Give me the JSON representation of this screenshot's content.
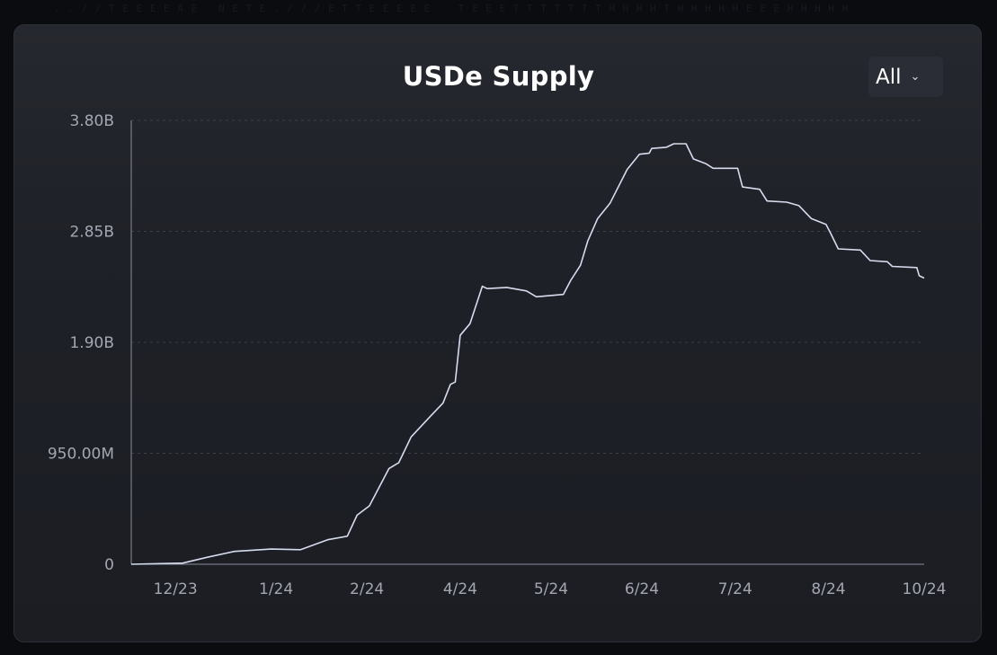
{
  "title": "USDe Supply",
  "range_selector": {
    "selected": "All",
    "icon": "chevron-down-icon"
  },
  "colors": {
    "line": "#d6dcee",
    "background": "#0a0c10",
    "card": "#1f2128",
    "grid": "#3a3e48"
  },
  "chart_data": {
    "type": "line",
    "title": "USDe Supply",
    "xlabel": "",
    "ylabel": "",
    "ylim": [
      0,
      3800000000
    ],
    "grid": "horizontal dashed",
    "yticks": [
      {
        "value": 0,
        "label": "0"
      },
      {
        "value": 950000000,
        "label": "950.00M"
      },
      {
        "value": 1900000000,
        "label": "1.90B"
      },
      {
        "value": 2850000000,
        "label": "2.85B"
      },
      {
        "value": 3800000000,
        "label": "3.80B"
      }
    ],
    "xticks": [
      {
        "date": "2023-12-08",
        "label": "12/23"
      },
      {
        "date": "2024-01-18",
        "label": "1/24"
      },
      {
        "date": "2024-02-24",
        "label": "2/24"
      },
      {
        "date": "2024-04-02",
        "label": "4/24"
      },
      {
        "date": "2024-05-09",
        "label": "5/24"
      },
      {
        "date": "2024-06-15",
        "label": "6/24"
      },
      {
        "date": "2024-07-23",
        "label": "7/24"
      },
      {
        "date": "2024-08-30",
        "label": "8/24"
      },
      {
        "date": "2024-10-08",
        "label": "10/24"
      }
    ],
    "series": [
      {
        "points": [
          [
            "2023-11-20",
            0
          ],
          [
            "2023-12-11",
            10000000
          ],
          [
            "2023-12-21",
            60000000
          ],
          [
            "2024-01-01",
            110000000
          ],
          [
            "2024-01-16",
            130000000
          ],
          [
            "2024-01-28",
            125000000
          ],
          [
            "2024-02-08",
            210000000
          ],
          [
            "2024-02-16",
            240000000
          ],
          [
            "2024-02-20",
            420000000
          ],
          [
            "2024-02-25",
            500000000
          ],
          [
            "2024-03-04",
            820000000
          ],
          [
            "2024-03-08",
            870000000
          ],
          [
            "2024-03-13",
            1090000000
          ],
          [
            "2024-03-21",
            1270000000
          ],
          [
            "2024-03-26",
            1380000000
          ],
          [
            "2024-03-29",
            1540000000
          ],
          [
            "2024-03-31",
            1560000000
          ],
          [
            "2024-04-02",
            1960000000
          ],
          [
            "2024-04-06",
            2060000000
          ],
          [
            "2024-04-11",
            2380000000
          ],
          [
            "2024-04-13",
            2360000000
          ],
          [
            "2024-04-21",
            2370000000
          ],
          [
            "2024-04-29",
            2340000000
          ],
          [
            "2024-05-03",
            2290000000
          ],
          [
            "2024-05-14",
            2310000000
          ],
          [
            "2024-05-17",
            2430000000
          ],
          [
            "2024-05-21",
            2560000000
          ],
          [
            "2024-05-24",
            2770000000
          ],
          [
            "2024-05-28",
            2960000000
          ],
          [
            "2024-06-02",
            3090000000
          ],
          [
            "2024-06-09",
            3380000000
          ],
          [
            "2024-06-14",
            3510000000
          ],
          [
            "2024-06-18",
            3520000000
          ],
          [
            "2024-06-19",
            3560000000
          ],
          [
            "2024-06-25",
            3570000000
          ],
          [
            "2024-06-28",
            3600000000
          ],
          [
            "2024-07-03",
            3600000000
          ],
          [
            "2024-07-06",
            3470000000
          ],
          [
            "2024-07-11",
            3430000000
          ],
          [
            "2024-07-14",
            3390000000
          ],
          [
            "2024-07-24",
            3390000000
          ],
          [
            "2024-07-26",
            3230000000
          ],
          [
            "2024-08-02",
            3210000000
          ],
          [
            "2024-08-05",
            3110000000
          ],
          [
            "2024-08-13",
            3100000000
          ],
          [
            "2024-08-18",
            3070000000
          ],
          [
            "2024-08-23",
            2960000000
          ],
          [
            "2024-08-29",
            2910000000
          ],
          [
            "2024-08-31",
            2830000000
          ],
          [
            "2024-09-03",
            2700000000
          ],
          [
            "2024-09-12",
            2690000000
          ],
          [
            "2024-09-16",
            2600000000
          ],
          [
            "2024-09-23",
            2590000000
          ],
          [
            "2024-09-25",
            2550000000
          ],
          [
            "2024-10-05",
            2540000000
          ],
          [
            "2024-10-06",
            2470000000
          ],
          [
            "2024-10-08",
            2450000000
          ]
        ]
      }
    ]
  }
}
